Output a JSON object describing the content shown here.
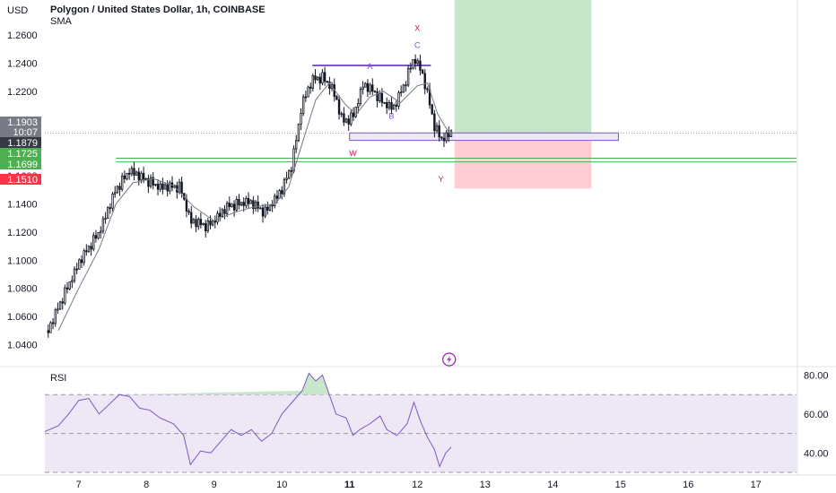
{
  "header": {
    "currency": "USD",
    "symbol_title": "Polygon / United States Dollar, 1h, COINBASE",
    "indicator": "SMA"
  },
  "rsi": {
    "label": "RSI",
    "ticks": [
      "80.00",
      "60.00",
      "40.00"
    ]
  },
  "price_badges": [
    {
      "label": "1.1903",
      "sub": "10:07",
      "color": "#787b86"
    },
    {
      "label": "1.1879",
      "color": "#363a45"
    },
    {
      "label": "1.1725",
      "color": "#4caf50"
    },
    {
      "label": "1.1699",
      "color": "#4caf50"
    },
    {
      "label": "1.1510",
      "color": "#f23645"
    }
  ],
  "pattern_labels": {
    "x": "X",
    "a": "A",
    "b": "B",
    "c": "C",
    "w": "W",
    "y": "Y"
  },
  "colors": {
    "up_candle": "#ffffff",
    "down_candle": "#131722",
    "sma": "#787b86",
    "rsi_line": "#7e57c2",
    "rsi_band": "#ede7f6",
    "target_zone": "#c8e6c9",
    "stop_zone": "#ffcdd2",
    "support_line": "#4caf50",
    "pattern_label": "#7e57c2",
    "xy_label": "#c2185b",
    "lightning_icon": "#9c27b0"
  },
  "chart_data": [
    {
      "type": "candlestick",
      "title": "Polygon / United States Dollar, 1h, COINBASE",
      "ylabel": "USD",
      "ylim": [
        1.025,
        1.285
      ],
      "y_ticks": [
        1.04,
        1.06,
        1.08,
        1.1,
        1.12,
        1.14,
        1.16,
        1.18,
        1.2,
        1.22,
        1.24,
        1.26
      ],
      "y_tick_labels": [
        "1.0400",
        "1.0600",
        "1.0800",
        "1.1000",
        "1.1200",
        "1.1400",
        "1.1600",
        "1.1800",
        "1.2000",
        "1.2200",
        "1.2400",
        "1.2600"
      ],
      "x_tick_labels": [
        "7",
        "8",
        "9",
        "10",
        "11",
        "12",
        "13",
        "14",
        "15",
        "16",
        "17"
      ],
      "xlim": [
        6.5,
        17.6
      ],
      "x_ticks": [
        7,
        8,
        9,
        10,
        11,
        12,
        13,
        14,
        15,
        16,
        17
      ],
      "last_price": 1.1903,
      "price_path": [
        [
          6.55,
          1.05
        ],
        [
          6.75,
          1.072
        ],
        [
          7.0,
          1.098
        ],
        [
          7.3,
          1.12
        ],
        [
          7.55,
          1.15
        ],
        [
          7.75,
          1.164
        ],
        [
          7.95,
          1.158
        ],
        [
          8.2,
          1.152
        ],
        [
          8.5,
          1.152
        ],
        [
          8.65,
          1.128
        ],
        [
          8.9,
          1.124
        ],
        [
          9.2,
          1.138
        ],
        [
          9.5,
          1.142
        ],
        [
          9.75,
          1.134
        ],
        [
          10.0,
          1.15
        ],
        [
          10.15,
          1.168
        ],
        [
          10.3,
          1.212
        ],
        [
          10.45,
          1.228
        ],
        [
          10.6,
          1.23
        ],
        [
          10.75,
          1.222
        ],
        [
          10.9,
          1.198
        ],
        [
          11.05,
          1.202
        ],
        [
          11.2,
          1.225
        ],
        [
          11.35,
          1.22
        ],
        [
          11.5,
          1.212
        ],
        [
          11.65,
          1.208
        ],
        [
          11.8,
          1.224
        ],
        [
          11.95,
          1.244
        ],
        [
          12.05,
          1.236
        ],
        [
          12.15,
          1.218
        ],
        [
          12.25,
          1.196
        ],
        [
          12.35,
          1.186
        ],
        [
          12.5,
          1.1903
        ]
      ],
      "series": [
        {
          "name": "SMA",
          "values": [
            [
              6.7,
              1.05
            ],
            [
              7.0,
              1.08
            ],
            [
              7.3,
              1.108
            ],
            [
              7.55,
              1.14
            ],
            [
              7.8,
              1.155
            ],
            [
              8.1,
              1.158
            ],
            [
              8.4,
              1.153
            ],
            [
              8.7,
              1.138
            ],
            [
              9.0,
              1.128
            ],
            [
              9.3,
              1.134
            ],
            [
              9.6,
              1.138
            ],
            [
              9.9,
              1.14
            ],
            [
              10.1,
              1.152
            ],
            [
              10.3,
              1.183
            ],
            [
              10.5,
              1.214
            ],
            [
              10.7,
              1.226
            ],
            [
              10.95,
              1.21
            ],
            [
              11.1,
              1.204
            ],
            [
              11.3,
              1.216
            ],
            [
              11.5,
              1.22
            ],
            [
              11.75,
              1.212
            ],
            [
              12.0,
              1.224
            ],
            [
              12.15,
              1.226
            ],
            [
              12.3,
              1.204
            ],
            [
              12.5,
              1.188
            ]
          ]
        }
      ],
      "horizontal_levels": [
        1.2385,
        1.1903,
        1.1725,
        1.1699
      ],
      "zones": {
        "pattern_box": [
          1.1905,
          1.1852
        ],
        "target_zone": [
          1.285,
          1.1879
        ],
        "stop_zone": [
          1.1879,
          1.151
        ]
      }
    },
    {
      "type": "line",
      "title": "RSI",
      "ylim": [
        30,
        83
      ],
      "y_ticks": [
        80,
        60,
        40
      ],
      "band": [
        30,
        70
      ],
      "midline": 50,
      "series": [
        {
          "name": "RSI",
          "values": [
            [
              6.5,
              51
            ],
            [
              6.7,
              54
            ],
            [
              6.85,
              60
            ],
            [
              7.0,
              67
            ],
            [
              7.15,
              68
            ],
            [
              7.3,
              60
            ],
            [
              7.45,
              65
            ],
            [
              7.6,
              70
            ],
            [
              7.75,
              69
            ],
            [
              7.9,
              63
            ],
            [
              8.05,
              62
            ],
            [
              8.2,
              58
            ],
            [
              8.4,
              55
            ],
            [
              8.55,
              49
            ],
            [
              8.65,
              34
            ],
            [
              8.8,
              41
            ],
            [
              8.95,
              40
            ],
            [
              9.1,
              46
            ],
            [
              9.25,
              52
            ],
            [
              9.4,
              49
            ],
            [
              9.55,
              52
            ],
            [
              9.7,
              46
            ],
            [
              9.85,
              50
            ],
            [
              10.0,
              60
            ],
            [
              10.15,
              66
            ],
            [
              10.3,
              72
            ],
            [
              10.4,
              81
            ],
            [
              10.5,
              77
            ],
            [
              10.6,
              80
            ],
            [
              10.7,
              70
            ],
            [
              10.8,
              60
            ],
            [
              10.95,
              58
            ],
            [
              11.05,
              49
            ],
            [
              11.15,
              52
            ],
            [
              11.3,
              55
            ],
            [
              11.45,
              59
            ],
            [
              11.55,
              52
            ],
            [
              11.7,
              49
            ],
            [
              11.85,
              55
            ],
            [
              11.95,
              66
            ],
            [
              12.05,
              56
            ],
            [
              12.15,
              48
            ],
            [
              12.25,
              42
            ],
            [
              12.33,
              33
            ],
            [
              12.42,
              40
            ],
            [
              12.5,
              43
            ]
          ]
        }
      ]
    }
  ]
}
